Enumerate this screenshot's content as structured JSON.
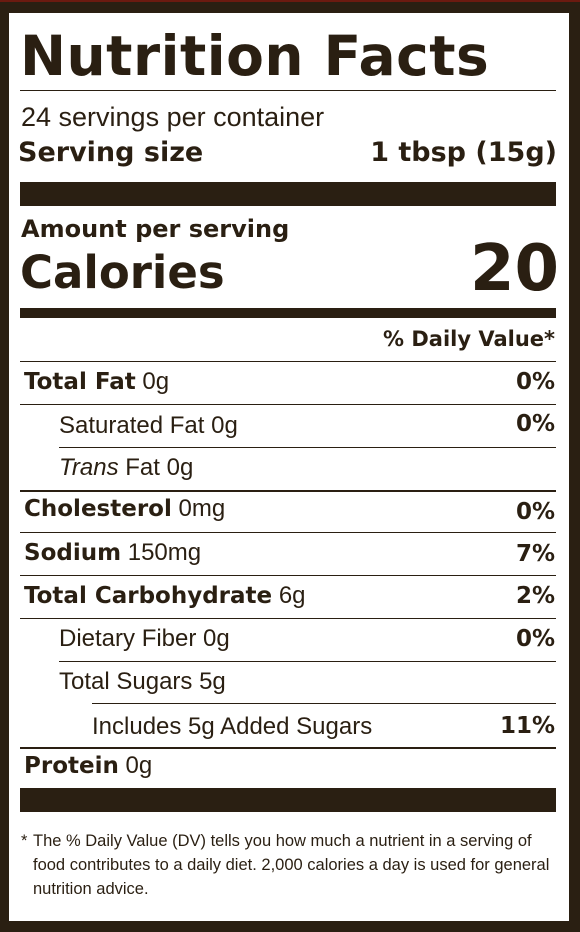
{
  "label": {
    "title": "Nutrition Facts",
    "servings": "24 servings per container",
    "serving_size_label": "Serving size",
    "serving_size_value": "1 tbsp (15g)",
    "amount_per_serving": "Amount per serving",
    "calories_label": "Calories",
    "calories_value": "20",
    "dv_header": "% Daily Value*",
    "rows": [
      {
        "name": "Total Fat",
        "amount": "0g",
        "dv": "0%"
      },
      {
        "name": "Saturated Fat",
        "amount": "0g",
        "dv": "0%"
      },
      {
        "name": "Trans",
        "name_rest": "Fat",
        "amount": "0g",
        "dv": ""
      },
      {
        "name": "Cholesterol",
        "amount": "0mg",
        "dv": "0%"
      },
      {
        "name": "Sodium",
        "amount": "150mg",
        "dv": "7%"
      },
      {
        "name": "Total Carbohydrate",
        "amount": "6g",
        "dv": "2%"
      },
      {
        "name": "Dietary Fiber",
        "amount": "0g",
        "dv": "0%"
      },
      {
        "name": "Total Sugars",
        "amount": "5g",
        "dv": ""
      },
      {
        "name": "Includes 5g Added Sugars",
        "amount": "",
        "dv": "11%"
      },
      {
        "name": "Protein",
        "amount": "0g",
        "dv": ""
      }
    ],
    "footnote_star": "*",
    "footnote": "The % Daily Value (DV) tells you how much a nutrient in a serving of food contributes to a daily diet. 2,000 calories a day is used for general nutrition advice."
  },
  "colors": {
    "ink": "#2a1f12",
    "background": "#ffffff",
    "frame": "#2a1f12"
  }
}
